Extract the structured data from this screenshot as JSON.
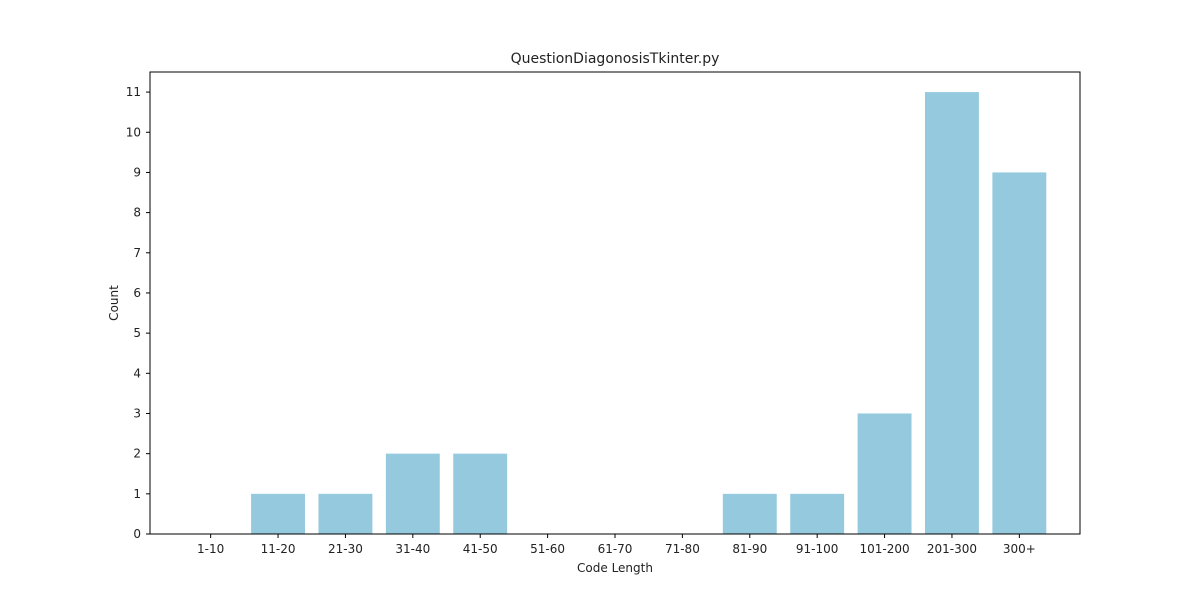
{
  "chart_data": {
    "type": "bar",
    "title": "QuestionDiagonosisTkinter.py",
    "xlabel": "Code Length",
    "ylabel": "Count",
    "categories": [
      "1-10",
      "11-20",
      "21-30",
      "31-40",
      "41-50",
      "51-60",
      "61-70",
      "71-80",
      "81-90",
      "91-100",
      "101-200",
      "201-300",
      "300+"
    ],
    "values": [
      0,
      1,
      1,
      2,
      2,
      0,
      0,
      0,
      1,
      1,
      3,
      11,
      9
    ],
    "ylim": [
      0,
      11.5
    ],
    "yticks": [
      "0",
      "1",
      "2",
      "3",
      "4",
      "5",
      "6",
      "7",
      "8",
      "9",
      "10",
      "11"
    ],
    "grid": false,
    "bar_color": "#95c9de"
  }
}
